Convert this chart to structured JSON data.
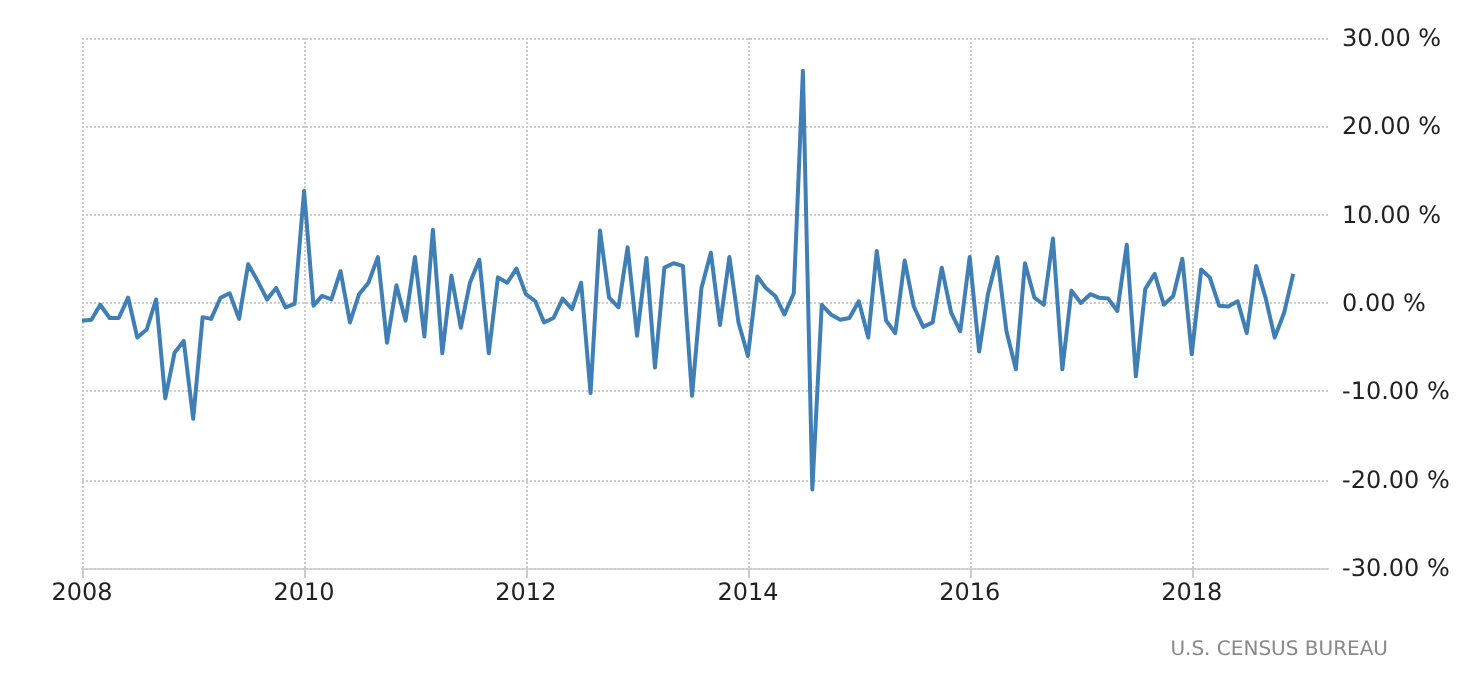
{
  "chart_data": {
    "type": "line",
    "color": "#3f7fb5",
    "x": [
      "2008-01",
      "2008-02",
      "2008-03",
      "2008-04",
      "2008-05",
      "2008-06",
      "2008-07",
      "2008-08",
      "2008-09",
      "2008-10",
      "2008-11",
      "2008-12",
      "2009-01",
      "2009-02",
      "2009-03",
      "2009-04",
      "2009-05",
      "2009-06",
      "2009-07",
      "2009-08",
      "2009-09",
      "2009-10",
      "2009-11",
      "2009-12",
      "2010-01",
      "2010-02",
      "2010-03",
      "2010-04",
      "2010-05",
      "2010-06",
      "2010-07",
      "2010-08",
      "2010-09",
      "2010-10",
      "2010-11",
      "2010-12",
      "2011-01",
      "2011-02",
      "2011-03",
      "2011-04",
      "2011-05",
      "2011-06",
      "2011-07",
      "2011-08",
      "2011-09",
      "2011-10",
      "2011-11",
      "2011-12",
      "2012-01",
      "2012-02",
      "2012-03",
      "2012-04",
      "2012-05",
      "2012-06",
      "2012-07",
      "2012-08",
      "2012-09",
      "2012-10",
      "2012-11",
      "2012-12",
      "2013-01",
      "2013-02",
      "2013-03",
      "2013-04",
      "2013-05",
      "2013-06",
      "2013-07",
      "2013-08",
      "2013-09",
      "2013-10",
      "2013-11",
      "2013-12",
      "2014-01",
      "2014-02",
      "2014-03",
      "2014-04",
      "2014-05",
      "2014-06",
      "2014-07",
      "2014-08",
      "2014-09",
      "2014-10",
      "2014-11",
      "2014-12",
      "2015-01",
      "2015-02",
      "2015-03",
      "2015-04",
      "2015-05",
      "2015-06",
      "2015-07",
      "2015-08",
      "2015-09",
      "2015-10",
      "2015-11",
      "2015-12",
      "2016-01",
      "2016-02",
      "2016-03",
      "2016-04",
      "2016-05",
      "2016-06",
      "2016-07",
      "2016-08",
      "2016-09",
      "2016-10",
      "2016-11",
      "2016-12",
      "2017-01",
      "2017-02",
      "2017-03",
      "2017-04",
      "2017-05",
      "2017-06",
      "2017-07",
      "2017-08",
      "2017-09",
      "2017-10",
      "2017-11",
      "2017-12",
      "2018-01",
      "2018-02",
      "2018-03",
      "2018-04",
      "2018-05",
      "2018-06",
      "2018-07",
      "2018-08",
      "2018-09",
      "2018-10",
      "2018-11",
      "2018-12"
    ],
    "values": [
      -2.0,
      -1.9,
      -0.2,
      -1.7,
      -1.7,
      0.6,
      -3.9,
      -3.0,
      0.4,
      -10.8,
      -5.6,
      -4.3,
      -13.1,
      -1.6,
      -1.8,
      0.6,
      1.1,
      -1.8,
      4.4,
      2.5,
      0.4,
      1.7,
      -0.5,
      -0.1,
      12.7,
      -0.3,
      0.8,
      0.4,
      3.6,
      -2.2,
      1.0,
      2.3,
      5.2,
      -4.5,
      2.0,
      -2.0,
      5.2,
      -3.8,
      8.3,
      -5.7,
      3.1,
      -2.8,
      2.3,
      4.9,
      -5.7,
      2.9,
      2.3,
      3.9,
      1.0,
      0.2,
      -2.2,
      -1.7,
      0.5,
      -0.7,
      2.3,
      -10.2,
      8.2,
      0.6,
      -0.5,
      6.3,
      -3.7,
      5.1,
      -7.3,
      4.0,
      4.5,
      4.2,
      -10.5,
      1.7,
      5.7,
      -2.5,
      5.2,
      -2.2,
      -6.0,
      3.0,
      1.7,
      0.8,
      -1.3,
      1.1,
      26.3,
      -21.1,
      -0.2,
      -1.3,
      -1.9,
      -1.7,
      0.2,
      -3.9,
      5.9,
      -2.0,
      -3.4,
      4.8,
      -0.4,
      -2.7,
      -2.2,
      4.0,
      -1.1,
      -3.2,
      5.2,
      -5.5,
      1.0,
      5.2,
      -3.2,
      -7.5,
      4.5,
      0.6,
      -0.2,
      7.3,
      -7.5,
      1.4,
      0.0,
      1.0,
      0.6,
      0.5,
      -0.9,
      6.6,
      -8.3,
      1.6,
      3.3,
      -0.2,
      0.8,
      5.0,
      -5.8,
      3.8,
      2.9,
      -0.3,
      -0.4,
      0.2,
      -3.4,
      4.2,
      0.6,
      -3.9,
      -1.1,
      3.3
    ],
    "xlim": [
      "2008-01",
      "2019-04"
    ],
    "xticks": [
      "2008",
      "2010",
      "2012",
      "2014",
      "2016",
      "2018"
    ],
    "ylim": [
      -30,
      30
    ],
    "yticks": [
      {
        "value": -30,
        "label": "-30.00 %"
      },
      {
        "value": -20,
        "label": "-20.00 %"
      },
      {
        "value": -10,
        "label": "-10.00 %"
      },
      {
        "value": 0,
        "label": "0.00 %"
      },
      {
        "value": 10,
        "label": "10.00 %"
      },
      {
        "value": 20,
        "label": "20.00 %"
      },
      {
        "value": 30,
        "label": "30.00 %"
      }
    ],
    "grid": true,
    "marker": "none",
    "line_style": "solid",
    "annotations": [
      "U.S. CENSUS BUREAU"
    ]
  }
}
